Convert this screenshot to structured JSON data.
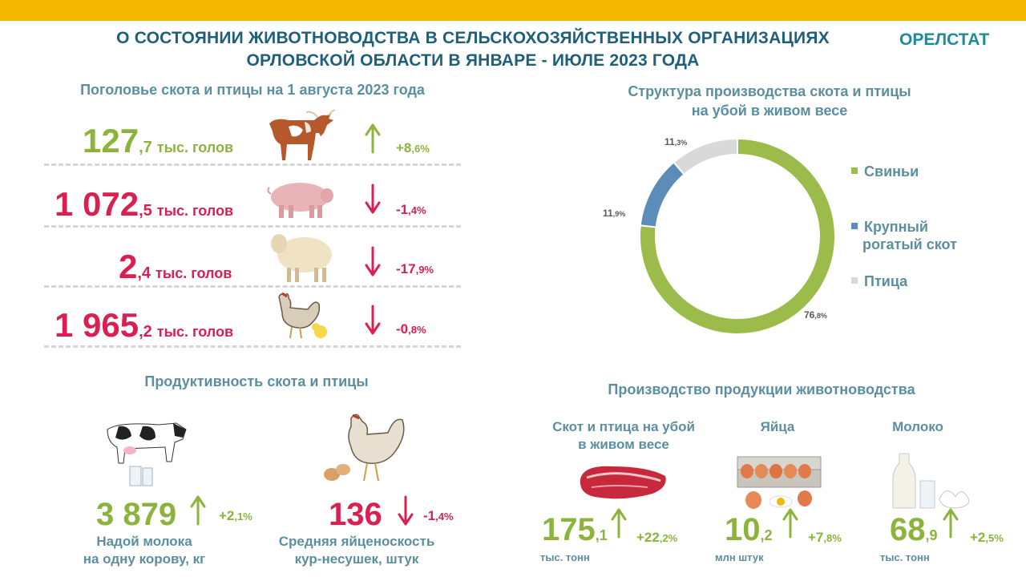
{
  "header": {
    "title_line1": "О СОСТОЯНИИ ЖИВОТНОВОДСТВА В СЕЛЬСКОХОЗЯЙСТВЕННЫХ ОРГАНИЗАЦИЯХ",
    "title_line2": "ОРЛОВСКОЙ ОБЛАСТИ В ЯНВАРЕ - ИЮЛЕ 2023 ГОДА",
    "brand": "ОРЕЛСТАТ"
  },
  "colors": {
    "accent_bar": "#f5b800",
    "green": "#8cb43c",
    "red": "#d92050",
    "heading": "#5b8fa0",
    "pigs": "#9bbb4b",
    "cattle": "#5b8db8",
    "poultry": "#d9d9d9"
  },
  "livestock": {
    "title": "Поголовье скота и птицы на 1 августа   2023 года",
    "rows": [
      {
        "int": "127",
        "frac": ",7",
        "unit": "тыс. голов",
        "animal_icon": "cow-icon",
        "trend": "up",
        "pct_int": "+8",
        "pct_frac": ",6%"
      },
      {
        "int": "1 072",
        "frac": ",5",
        "unit": "тыс. голов",
        "animal_icon": "pig-icon",
        "trend": "down",
        "pct_int": "-1",
        "pct_frac": ",4%"
      },
      {
        "int": "2",
        "frac": ",4",
        "unit": "тыс. голов",
        "animal_icon": "sheep-icon",
        "trend": "down",
        "pct_int": "-17",
        "pct_frac": ",9%"
      },
      {
        "int": "1 965",
        "frac": ",2",
        "unit": "тыс. голов",
        "animal_icon": "chicken-icon",
        "trend": "down",
        "pct_int": "-0",
        "pct_frac": ",8%"
      }
    ]
  },
  "structure": {
    "title_line1": "Структура производства скота и птицы",
    "title_line2": "на убой в живом весе",
    "legend": [
      "Свиньи",
      "Крупный рогатый скот",
      "Птица"
    ],
    "legend_cattle_line1": "Крупный",
    "legend_cattle_line2": "рогатый скот",
    "labels": [
      {
        "int": "76",
        "frac": ",8%"
      },
      {
        "int": "11",
        "frac": ",9%"
      },
      {
        "int": "11",
        "frac": ",3%"
      }
    ]
  },
  "chart_data": {
    "type": "pie",
    "title": "Структура производства скота и птицы на убой в живом весе",
    "categories": [
      "Свиньи",
      "Крупный рогатый скот",
      "Птица"
    ],
    "values": [
      76.8,
      11.9,
      11.3
    ],
    "colors": [
      "#9bbb4b",
      "#5b8db8",
      "#d9d9d9"
    ],
    "donut": true,
    "legend": "right"
  },
  "productivity": {
    "title": "Продуктивность  скота и птицы",
    "milk": {
      "value": "3 879",
      "trend": "up",
      "pct_int": "+2",
      "pct_frac": ",1%",
      "caption_line1": "Надой молока",
      "caption_line2": "на одну корову, кг"
    },
    "eggs": {
      "value": "136",
      "trend": "down",
      "pct_int": "-1",
      "pct_frac": ",4%",
      "caption_line1": "Средняя яйценоскость",
      "caption_line2": "кур-несушек, штук"
    }
  },
  "production": {
    "title": "Производство продукции животноводства",
    "meat": {
      "caption_line1": "Скот и птица на убой",
      "caption_line2": "в живом весе",
      "int": "175",
      "frac": ",1",
      "unit": "тыс. тонн",
      "pct_int": "+22",
      "pct_frac": ",2%"
    },
    "eggs": {
      "caption": "Яйца",
      "int": "10",
      "frac": ",2",
      "unit": "млн штук",
      "pct_int": "+7",
      "pct_frac": ",8%"
    },
    "milk": {
      "caption": "Молоко",
      "int": "68",
      "frac": ",9",
      "unit": "тыс. тонн",
      "pct_int": "+2",
      "pct_frac": ",5%"
    }
  }
}
